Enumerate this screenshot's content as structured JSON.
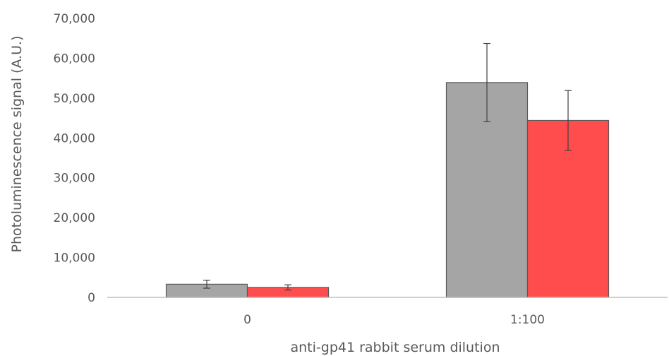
{
  "chart_data": {
    "type": "bar",
    "categories": [
      "0",
      "1:100"
    ],
    "series": [
      {
        "values": [
          3300,
          53900
        ],
        "errors": [
          1000,
          9800
        ],
        "color": "#a5a5a5"
      },
      {
        "values": [
          2500,
          44400
        ],
        "errors": [
          650,
          7500
        ],
        "color": "#ff4d4d"
      }
    ],
    "xlabel": "anti-gp41 rabbit serum dilution",
    "ylabel": "Photoluminescence signal (A.U.)",
    "ylim": [
      0,
      70000
    ],
    "yticks": [
      "0",
      "10,000",
      "20,000",
      "30,000",
      "40,000",
      "50,000",
      "60,000",
      "70,000"
    ],
    "grid": false,
    "legend": "none"
  }
}
